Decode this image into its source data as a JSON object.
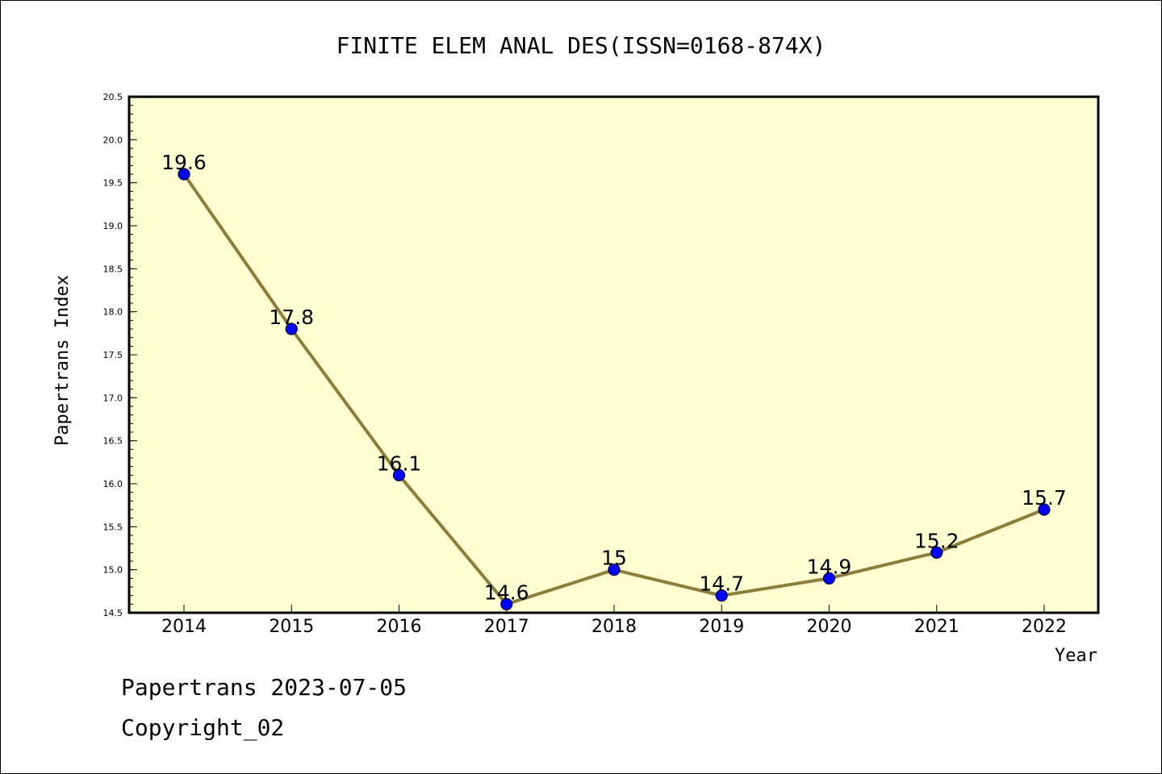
{
  "chart_data": {
    "type": "line",
    "title": "FINITE ELEM ANAL DES(ISSN=0168-874X)",
    "xlabel": "Year",
    "ylabel": "Papertrans Index",
    "categories": [
      "2014",
      "2015",
      "2016",
      "2017",
      "2018",
      "2019",
      "2020",
      "2021",
      "2022"
    ],
    "values": [
      19.6,
      17.8,
      16.1,
      14.6,
      15,
      14.7,
      14.9,
      15.2,
      15.7
    ],
    "data_labels": [
      "19.6",
      "17.8",
      "16.1",
      "14.6",
      "15",
      "14.7",
      "14.9",
      "15.2",
      "15.7"
    ],
    "ylim": [
      14.5,
      20.5
    ],
    "yticks": [
      "14.5",
      "15.0",
      "15.5",
      "16.0",
      "16.5",
      "17.0",
      "17.5",
      "18.0",
      "18.5",
      "19.0",
      "19.5",
      "20.0",
      "20.5"
    ],
    "grid": false,
    "legend": "none",
    "colors": {
      "plot_background": "#ffffd2",
      "line": "#8b7d3a",
      "marker_fill": "#0000ff",
      "marker_edge": "#000033",
      "axis": "#000000"
    }
  },
  "footer": {
    "date_text": "Papertrans 2023-07-05",
    "copyright_text": "Copyright_02"
  }
}
